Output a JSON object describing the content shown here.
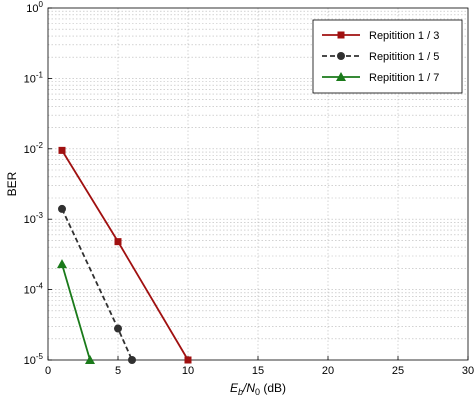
{
  "chart_data": {
    "type": "line",
    "xlabel_parts": {
      "main": "E",
      "sub": "b",
      "mid": "/N",
      "sub2": "0",
      "tail": " (dB)"
    },
    "ylabel": "BER",
    "xlim": [
      0,
      30
    ],
    "ylim": [
      1e-05,
      1
    ],
    "yscale": "log",
    "grid": true,
    "legend_position": "top-right",
    "x_ticks": [
      0,
      5,
      10,
      15,
      20,
      25,
      30
    ],
    "x_tick_labels": [
      "0",
      "5",
      "10",
      "15",
      "20",
      "25",
      "30"
    ],
    "y_ticks": [
      1,
      0.1,
      0.01,
      0.001,
      0.0001,
      1e-05
    ],
    "y_tick_labels": [
      {
        "base": "10",
        "exp": "0"
      },
      {
        "base": "10",
        "exp": "-1"
      },
      {
        "base": "10",
        "exp": "-2"
      },
      {
        "base": "10",
        "exp": "-3"
      },
      {
        "base": "10",
        "exp": "-4"
      },
      {
        "base": "10",
        "exp": "-5"
      }
    ],
    "series": [
      {
        "name": "Repitition 1 / 3",
        "color": "#a01010",
        "line_style": "solid",
        "marker": "square",
        "x": [
          1,
          5,
          10
        ],
        "y": [
          0.0095,
          0.00048,
          1e-05
        ]
      },
      {
        "name": "Repitition 1 / 5",
        "color": "#303030",
        "line_style": "dashed",
        "marker": "circle",
        "x": [
          1,
          5,
          6
        ],
        "y": [
          0.0014,
          2.8e-05,
          1e-05
        ]
      },
      {
        "name": "Repitition 1 / 7",
        "color": "#1a7a1a",
        "line_style": "solid",
        "marker": "triangle",
        "x": [
          1,
          3
        ],
        "y": [
          0.00023,
          1e-05
        ]
      }
    ]
  }
}
